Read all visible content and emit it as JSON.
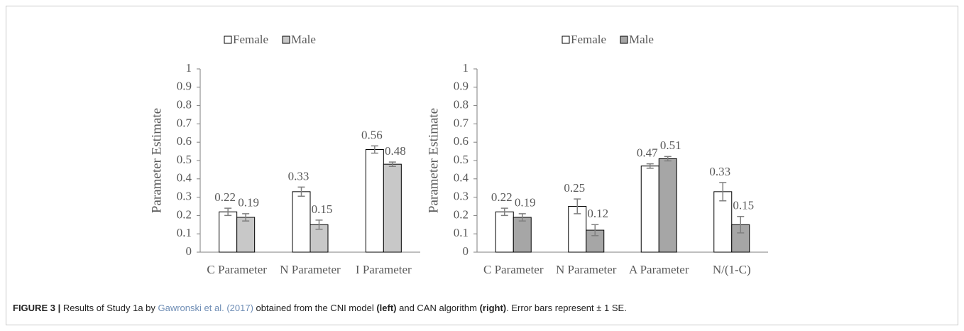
{
  "chart_data": [
    {
      "type": "bar",
      "y_label": "Parameter Estimate",
      "categories": [
        "C Parameter",
        "N Parameter",
        "I Parameter"
      ],
      "series": [
        {
          "name": "Female",
          "color": "#ffffff",
          "values": [
            0.22,
            0.33,
            0.56
          ],
          "errors": [
            0.02,
            0.025,
            0.02
          ]
        },
        {
          "name": "Male",
          "color": "#c8c8c8",
          "values": [
            0.19,
            0.15,
            0.48
          ],
          "errors": [
            0.02,
            0.025,
            0.012
          ]
        }
      ],
      "ylim": [
        0,
        1
      ],
      "yticks": [
        0,
        0.1,
        0.2,
        0.3,
        0.4,
        0.5,
        0.6,
        0.7,
        0.8,
        0.9,
        1
      ],
      "legend": "top",
      "grid": false
    },
    {
      "type": "bar",
      "y_label": "Parameter Estimate",
      "categories": [
        "C Parameter",
        "N Parameter",
        "A Parameter",
        "N/(1-C)"
      ],
      "series": [
        {
          "name": "Female",
          "color": "#ffffff",
          "values": [
            0.22,
            0.25,
            0.47,
            0.33
          ],
          "errors": [
            0.02,
            0.04,
            0.012,
            0.05
          ]
        },
        {
          "name": "Male",
          "color": "#a6a6a6",
          "values": [
            0.19,
            0.12,
            0.51,
            0.15
          ],
          "errors": [
            0.02,
            0.03,
            0.012,
            0.045
          ]
        }
      ],
      "ylim": [
        0,
        1
      ],
      "yticks": [
        0,
        0.1,
        0.2,
        0.3,
        0.4,
        0.5,
        0.6,
        0.7,
        0.8,
        0.9,
        1
      ],
      "legend": "top",
      "grid": false
    }
  ],
  "caption": {
    "parts": [
      "FIGURE 3 |",
      " Results of Study 1a by ",
      "Gawronski et al. (2017)",
      " obtained from the CNI model ",
      "(left)",
      " and CAN algorithm ",
      "(right)",
      ". Error bars represent ± 1 SE."
    ]
  }
}
